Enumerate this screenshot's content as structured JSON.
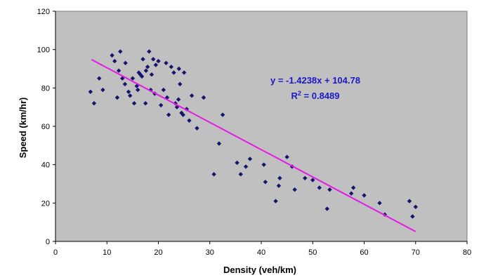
{
  "chart_data": {
    "type": "scatter",
    "title": "",
    "xlabel": "Density (veh/km)",
    "ylabel": "Speed (km/hr)",
    "xlim": [
      0,
      80
    ],
    "ylim": [
      0,
      120
    ],
    "xticks": [
      0,
      10,
      20,
      30,
      40,
      50,
      60,
      70,
      80
    ],
    "yticks": [
      0,
      20,
      40,
      60,
      80,
      100,
      120
    ],
    "grid": false,
    "legend": "none",
    "colors": {
      "plot_background": "#c0c0c0",
      "points": "#14146e",
      "trendline": "#e619e6",
      "equation_text": "#1a1ac8"
    },
    "series": [
      {
        "marker": "diamond",
        "x": [
          6.8,
          7.5,
          8.5,
          9.2,
          11.0,
          11.5,
          12.0,
          12.3,
          12.6,
          13.0,
          13.5,
          13.6,
          14.2,
          14.5,
          15.0,
          15.3,
          15.8,
          16.0,
          16.2,
          16.5,
          16.8,
          17.0,
          17.5,
          17.6,
          17.9,
          18.2,
          18.5,
          18.7,
          19.0,
          19.3,
          19.5,
          20.0,
          20.5,
          21.0,
          21.5,
          21.7,
          22.0,
          22.5,
          23.0,
          23.3,
          23.6,
          23.9,
          24.0,
          24.2,
          24.5,
          24.8,
          25.0,
          25.5,
          26.0,
          26.5,
          27.5,
          28.8,
          30.8,
          31.8,
          32.5,
          35.3,
          36.0,
          37.0,
          37.8,
          40.5,
          40.8,
          42.8,
          43.4,
          43.6,
          45.0,
          46.0,
          46.5,
          48.5,
          50.0,
          51.3,
          52.8,
          53.3,
          57.5,
          57.9,
          60.0,
          63.0,
          64.0,
          68.8,
          69.4,
          70.0
        ],
        "y": [
          78,
          72,
          85,
          79,
          97,
          94,
          75,
          89,
          99,
          85,
          82,
          93,
          78,
          76,
          85,
          72,
          81,
          79,
          88,
          87,
          86,
          95,
          72,
          89,
          91,
          99,
          79,
          87,
          95,
          77,
          92,
          94,
          71,
          79,
          93,
          75,
          66,
          91,
          88,
          72,
          70,
          74,
          90,
          82,
          67,
          66,
          88,
          69,
          63,
          76,
          59,
          75,
          35,
          51,
          66,
          41,
          35,
          39,
          43,
          40,
          31,
          21,
          29,
          33,
          44,
          39,
          27,
          33,
          32,
          28,
          17,
          27,
          25,
          28,
          24,
          20,
          14,
          21,
          13,
          18
        ]
      }
    ],
    "trendline": {
      "type": "linear",
      "x_range": [
        7,
        70
      ],
      "equation": "y = -1.4238x + 104.78",
      "r2_label": "R",
      "r2_superscript": "2",
      "r2_value": " = 0.8489"
    }
  }
}
